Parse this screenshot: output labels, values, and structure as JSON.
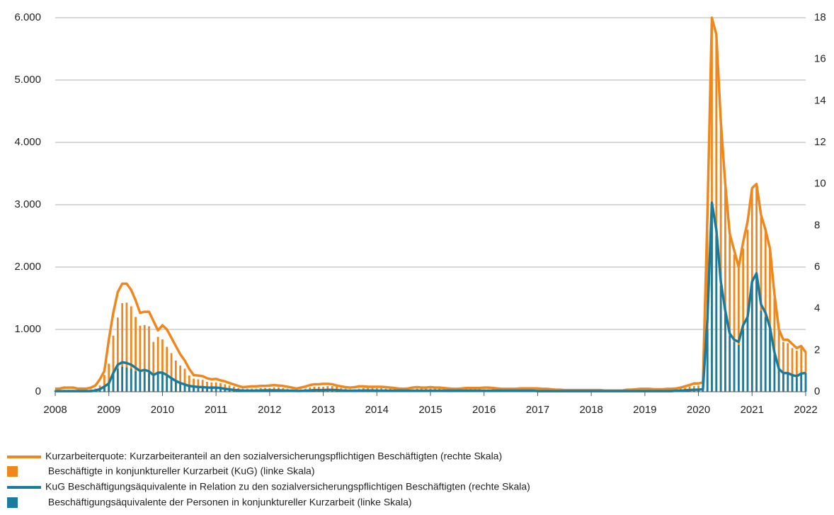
{
  "chart_data": {
    "type": "combo",
    "xlim": [
      2008,
      2022
    ],
    "xticks": [
      2008,
      2009,
      2010,
      2011,
      2012,
      2013,
      2014,
      2015,
      2016,
      2017,
      2018,
      2019,
      2020,
      2021,
      2022
    ],
    "ylim": [
      0,
      6000
    ],
    "yticks": [
      0,
      {
        "value": 1000,
        "label": "1.000"
      },
      {
        "value": 2000,
        "label": "2.000"
      },
      {
        "value": 3000,
        "label": "3.000"
      },
      {
        "value": 4000,
        "label": "4.000"
      },
      {
        "value": 5000,
        "label": "5.000"
      },
      {
        "value": 6000,
        "label": "6.000"
      }
    ],
    "y2lim": [
      0,
      18
    ],
    "y2ticks": [
      0,
      2,
      4,
      6,
      8,
      10,
      12,
      14,
      16,
      18
    ],
    "grid": true,
    "x": [
      2008,
      2008.083,
      2008.167,
      2008.25,
      2008.333,
      2008.417,
      2008.5,
      2008.583,
      2008.667,
      2008.75,
      2008.833,
      2008.917,
      2009,
      2009.083,
      2009.167,
      2009.25,
      2009.333,
      2009.417,
      2009.5,
      2009.583,
      2009.667,
      2009.75,
      2009.833,
      2009.917,
      2010,
      2010.083,
      2010.167,
      2010.25,
      2010.333,
      2010.417,
      2010.5,
      2010.583,
      2010.667,
      2010.75,
      2010.833,
      2010.917,
      2011,
      2011.083,
      2011.167,
      2011.25,
      2011.333,
      2011.417,
      2011.5,
      2011.583,
      2011.667,
      2011.75,
      2011.833,
      2011.917,
      2012,
      2012.083,
      2012.167,
      2012.25,
      2012.333,
      2012.417,
      2012.5,
      2012.583,
      2012.667,
      2012.75,
      2012.833,
      2012.917,
      2013,
      2013.083,
      2013.167,
      2013.25,
      2013.333,
      2013.417,
      2013.5,
      2013.583,
      2013.667,
      2013.75,
      2013.833,
      2013.917,
      2014,
      2014.083,
      2014.167,
      2014.25,
      2014.333,
      2014.417,
      2014.5,
      2014.583,
      2014.667,
      2014.75,
      2014.833,
      2014.917,
      2015,
      2015.083,
      2015.167,
      2015.25,
      2015.333,
      2015.417,
      2015.5,
      2015.583,
      2015.667,
      2015.75,
      2015.833,
      2015.917,
      2016,
      2016.083,
      2016.167,
      2016.25,
      2016.333,
      2016.417,
      2016.5,
      2016.583,
      2016.667,
      2016.75,
      2016.833,
      2016.917,
      2017,
      2017.083,
      2017.167,
      2017.25,
      2017.333,
      2017.417,
      2017.5,
      2017.583,
      2017.667,
      2017.75,
      2017.833,
      2017.917,
      2018,
      2018.083,
      2018.167,
      2018.25,
      2018.333,
      2018.417,
      2018.5,
      2018.583,
      2018.667,
      2018.75,
      2018.833,
      2018.917,
      2019,
      2019.083,
      2019.167,
      2019.25,
      2019.333,
      2019.417,
      2019.5,
      2019.583,
      2019.667,
      2019.75,
      2019.833,
      2019.917,
      2020,
      2020.083,
      2020.167,
      2020.25,
      2020.333,
      2020.417,
      2020.5,
      2020.583,
      2020.667,
      2020.75,
      2020.833,
      2020.917,
      2021,
      2021.083,
      2021.167,
      2021.25,
      2021.333,
      2021.417,
      2021.5,
      2021.583,
      2021.667,
      2021.75,
      2021.833,
      2021.917,
      2022
    ],
    "series": [
      {
        "name": "Kurzarbeiterquote: Kurzarbeiteranteil an den sozialversicherungspflichtigen Beschäftigten (rechte Skala)",
        "type": "line",
        "axis": "y2",
        "color": "#f0871d",
        "values": [
          0.15,
          0.15,
          0.2,
          0.2,
          0.2,
          0.15,
          0.15,
          0.15,
          0.2,
          0.3,
          0.6,
          1.0,
          2.5,
          3.8,
          4.8,
          5.2,
          5.2,
          4.9,
          4.4,
          3.8,
          3.85,
          3.85,
          3.4,
          2.95,
          3.2,
          3.0,
          2.6,
          2.2,
          1.8,
          1.5,
          1.1,
          0.8,
          0.78,
          0.75,
          0.65,
          0.6,
          0.62,
          0.55,
          0.5,
          0.42,
          0.35,
          0.28,
          0.22,
          0.24,
          0.26,
          0.26,
          0.28,
          0.28,
          0.3,
          0.32,
          0.3,
          0.28,
          0.24,
          0.2,
          0.15,
          0.2,
          0.25,
          0.32,
          0.36,
          0.36,
          0.38,
          0.38,
          0.36,
          0.3,
          0.26,
          0.22,
          0.2,
          0.22,
          0.26,
          0.26,
          0.24,
          0.24,
          0.24,
          0.24,
          0.22,
          0.2,
          0.18,
          0.15,
          0.14,
          0.16,
          0.2,
          0.22,
          0.2,
          0.2,
          0.22,
          0.2,
          0.2,
          0.18,
          0.16,
          0.14,
          0.14,
          0.16,
          0.18,
          0.18,
          0.18,
          0.18,
          0.2,
          0.2,
          0.18,
          0.16,
          0.14,
          0.14,
          0.14,
          0.14,
          0.16,
          0.16,
          0.16,
          0.16,
          0.16,
          0.14,
          0.14,
          0.12,
          0.1,
          0.1,
          0.08,
          0.08,
          0.08,
          0.08,
          0.08,
          0.08,
          0.08,
          0.08,
          0.08,
          0.06,
          0.06,
          0.06,
          0.06,
          0.06,
          0.1,
          0.1,
          0.12,
          0.14,
          0.14,
          0.14,
          0.12,
          0.12,
          0.12,
          0.14,
          0.14,
          0.16,
          0.2,
          0.26,
          0.32,
          0.4,
          0.4,
          0.45,
          8.5,
          18,
          17.2,
          13,
          10,
          7.6,
          6.8,
          6.0,
          7.2,
          8.2,
          9.8,
          10,
          8.5,
          7.8,
          6.9,
          4.7,
          3.0,
          2.5,
          2.5,
          2.3,
          2.1,
          2.2,
          1.9
        ]
      },
      {
        "name": " Beschäftigte in konjunktureller Kurzarbeit (KuG) (linke Skala)",
        "type": "bar",
        "color": "#f0871d",
        "values": [
          30,
          30,
          30,
          30,
          30,
          30,
          30,
          30,
          40,
          50,
          100,
          270,
          450,
          900,
          1190,
          1420,
          1430,
          1370,
          1200,
          1060,
          1070,
          1050,
          800,
          880,
          840,
          720,
          620,
          500,
          420,
          370,
          260,
          210,
          200,
          190,
          160,
          150,
          150,
          140,
          120,
          100,
          80,
          60,
          50,
          50,
          50,
          50,
          60,
          60,
          60,
          70,
          70,
          60,
          50,
          40,
          30,
          40,
          50,
          70,
          80,
          80,
          80,
          90,
          90,
          80,
          60,
          50,
          40,
          40,
          50,
          60,
          60,
          60,
          60,
          60,
          50,
          50,
          40,
          40,
          30,
          30,
          40,
          50,
          50,
          50,
          50,
          50,
          50,
          40,
          40,
          30,
          30,
          30,
          40,
          40,
          40,
          40,
          40,
          40,
          40,
          40,
          30,
          30,
          30,
          30,
          30,
          30,
          40,
          40,
          40,
          30,
          30,
          30,
          30,
          20,
          20,
          20,
          20,
          20,
          20,
          20,
          20,
          20,
          20,
          20,
          20,
          20,
          20,
          20,
          20,
          20,
          20,
          30,
          30,
          30,
          30,
          30,
          30,
          30,
          40,
          40,
          50,
          60,
          80,
          90,
          100,
          130,
          2600,
          5950,
          5700,
          4400,
          3300,
          2500,
          2200,
          2000,
          2300,
          2600,
          3250,
          3300,
          2800,
          2600,
          2300,
          1500,
          1000,
          800,
          780,
          700,
          660,
          700,
          640
        ]
      },
      {
        "name": "KuG Beschäftigungsäquivalente in Relation zu den sozialversicherungspflichtigen Beschäftigten (rechte Skala)",
        "type": "line",
        "axis": "y2",
        "color": "#1a7b9d",
        "values": [
          0.03,
          0.03,
          0.03,
          0.03,
          0.03,
          0.03,
          0.03,
          0.03,
          0.03,
          0.06,
          0.12,
          0.25,
          0.4,
          0.9,
          1.3,
          1.42,
          1.38,
          1.3,
          1.15,
          1.0,
          1.05,
          0.98,
          0.8,
          0.92,
          0.92,
          0.8,
          0.65,
          0.52,
          0.42,
          0.35,
          0.28,
          0.25,
          0.23,
          0.22,
          0.2,
          0.2,
          0.2,
          0.18,
          0.14,
          0.11,
          0.09,
          0.07,
          0.05,
          0.05,
          0.05,
          0.05,
          0.06,
          0.07,
          0.07,
          0.07,
          0.07,
          0.06,
          0.05,
          0.05,
          0.04,
          0.04,
          0.05,
          0.06,
          0.08,
          0.08,
          0.08,
          0.09,
          0.09,
          0.08,
          0.06,
          0.05,
          0.05,
          0.05,
          0.05,
          0.06,
          0.06,
          0.06,
          0.05,
          0.05,
          0.05,
          0.05,
          0.05,
          0.05,
          0.05,
          0.05,
          0.05,
          0.05,
          0.05,
          0.05,
          0.05,
          0.05,
          0.05,
          0.05,
          0.05,
          0.05,
          0.05,
          0.05,
          0.05,
          0.05,
          0.05,
          0.05,
          0.05,
          0.05,
          0.05,
          0.05,
          0.05,
          0.05,
          0.05,
          0.05,
          0.05,
          0.05,
          0.05,
          0.05,
          0.03,
          0.03,
          0.03,
          0.03,
          0.03,
          0.03,
          0.03,
          0.03,
          0.03,
          0.03,
          0.03,
          0.03,
          0.03,
          0.03,
          0.03,
          0.03,
          0.03,
          0.03,
          0.03,
          0.03,
          0.03,
          0.03,
          0.03,
          0.03,
          0.03,
          0.03,
          0.03,
          0.03,
          0.03,
          0.03,
          0.03,
          0.05,
          0.05,
          0.07,
          0.08,
          0.1,
          0.1,
          0.12,
          3.5,
          9.1,
          7.8,
          5.3,
          3.9,
          2.8,
          2.5,
          2.4,
          3.2,
          3.6,
          5.3,
          5.7,
          4.2,
          3.8,
          3.1,
          1.9,
          1.1,
          0.9,
          0.9,
          0.8,
          0.75,
          0.88,
          0.9
        ]
      },
      {
        "name": " Beschäftigungsäquivalente der Personen in konjunktureller Kurzarbeit (linke Skala)",
        "type": "bar",
        "color": "#1a7b9d",
        "values": [
          10,
          10,
          10,
          10,
          10,
          10,
          10,
          10,
          10,
          20,
          40,
          80,
          150,
          300,
          370,
          400,
          390,
          370,
          330,
          320,
          320,
          300,
          250,
          290,
          290,
          250,
          200,
          160,
          130,
          110,
          90,
          80,
          70,
          70,
          60,
          60,
          60,
          50,
          40,
          30,
          25,
          20,
          15,
          15,
          15,
          15,
          20,
          20,
          20,
          20,
          20,
          20,
          15,
          15,
          10,
          10,
          15,
          20,
          25,
          25,
          25,
          30,
          30,
          25,
          20,
          15,
          15,
          15,
          15,
          20,
          20,
          20,
          15,
          15,
          15,
          15,
          15,
          15,
          15,
          15,
          15,
          15,
          15,
          15,
          15,
          15,
          15,
          15,
          15,
          15,
          15,
          15,
          15,
          15,
          15,
          15,
          15,
          15,
          15,
          15,
          15,
          15,
          15,
          15,
          15,
          15,
          15,
          15,
          10,
          10,
          10,
          10,
          10,
          10,
          10,
          10,
          10,
          10,
          10,
          10,
          10,
          10,
          10,
          10,
          10,
          10,
          10,
          10,
          10,
          10,
          10,
          10,
          10,
          10,
          10,
          10,
          10,
          10,
          10,
          15,
          15,
          20,
          25,
          30,
          30,
          40,
          1000,
          2950,
          2500,
          1700,
          1250,
          900,
          800,
          750,
          1000,
          1200,
          1750,
          1850,
          1300,
          1200,
          1000,
          600,
          370,
          300,
          280,
          250,
          230,
          290,
          300
        ]
      }
    ]
  }
}
